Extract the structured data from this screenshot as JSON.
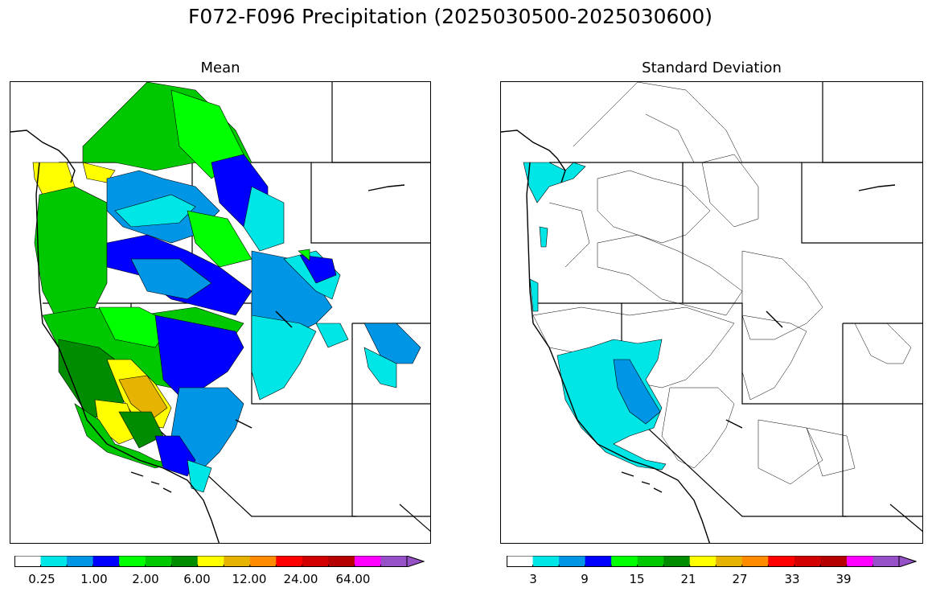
{
  "figure": {
    "title": "F072-F096 Precipitation (2025030500-2025030600)"
  },
  "panels": [
    {
      "title": "Mean",
      "colorbar": {
        "colors": [
          "#ffffff",
          "#00e5e5",
          "#0096e5",
          "#0000ff",
          "#00ff00",
          "#00c800",
          "#008c00",
          "#ffff00",
          "#e6b400",
          "#ff8c00",
          "#ff0000",
          "#d20000",
          "#b40000",
          "#ff00ff",
          "#9650c8"
        ],
        "tick_labels": [
          "0.25",
          "1.00",
          "2.00",
          "6.00",
          "12.00",
          "24.00",
          "64.00"
        ],
        "extend": "max"
      }
    },
    {
      "title": "Standard Deviation",
      "colorbar": {
        "colors": [
          "#ffffff",
          "#00e5e5",
          "#0096e5",
          "#0000ff",
          "#00ff00",
          "#00c800",
          "#008c00",
          "#ffff00",
          "#e6b400",
          "#ff8c00",
          "#ff0000",
          "#d20000",
          "#b40000",
          "#ff00ff",
          "#9650c8"
        ],
        "tick_labels": [
          "3",
          "9",
          "15",
          "21",
          "27",
          "33",
          "39"
        ],
        "extend": "max"
      }
    }
  ]
}
